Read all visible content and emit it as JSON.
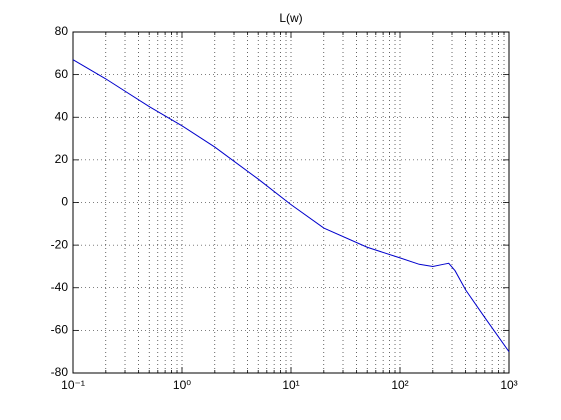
{
  "chart_data": {
    "type": "line",
    "title": "L(w)",
    "xscale": "log",
    "grid": true,
    "xlim": [
      0.1,
      1000
    ],
    "ylim": [
      -80,
      80
    ],
    "xticks": [
      {
        "value": 0.1,
        "label": "10⁻¹"
      },
      {
        "value": 1,
        "label": "10⁰"
      },
      {
        "value": 10,
        "label": "10¹"
      },
      {
        "value": 100,
        "label": "10²"
      },
      {
        "value": 1000,
        "label": "10³"
      }
    ],
    "xminorticks": [
      0.2,
      0.3,
      0.4,
      0.5,
      0.6,
      0.7,
      0.8,
      0.9,
      2,
      3,
      4,
      5,
      6,
      7,
      8,
      9,
      20,
      30,
      40,
      50,
      60,
      70,
      80,
      90,
      200,
      300,
      400,
      500,
      600,
      700,
      800,
      900
    ],
    "yticks": [
      -80,
      -60,
      -40,
      -20,
      0,
      20,
      40,
      60,
      80
    ],
    "x": [
      0.1,
      0.2,
      0.5,
      1,
      2,
      5,
      10,
      20,
      50,
      100,
      150,
      200,
      250,
      280,
      320,
      400,
      600,
      1000
    ],
    "series": [
      {
        "color": "#0000cc",
        "values": [
          67,
          58,
          45,
          36,
          26,
          11,
          -1,
          -12,
          -21,
          -26,
          -29,
          -30,
          -29,
          -28.5,
          -32,
          -41,
          -54,
          -70
        ]
      }
    ]
  }
}
